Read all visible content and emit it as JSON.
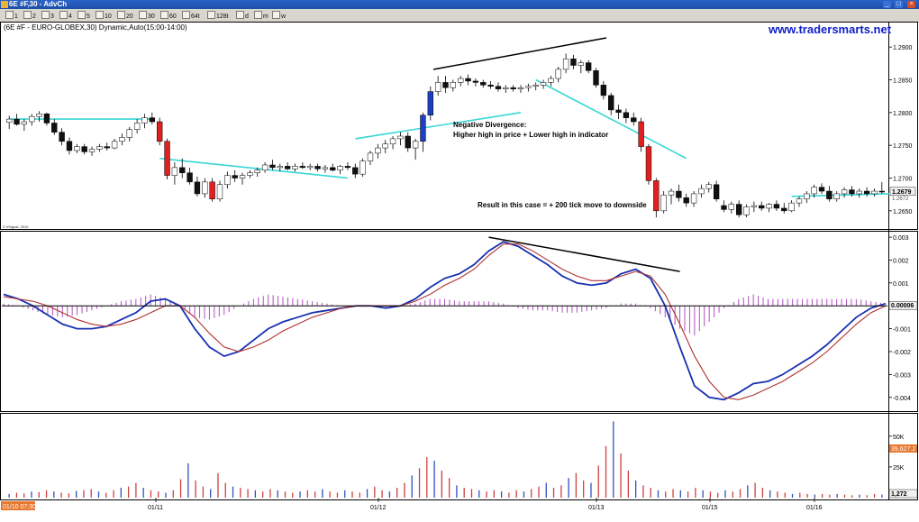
{
  "window": {
    "title": "6E #F,30 - AdvCh",
    "buttons": [
      "_",
      "□",
      "×"
    ]
  },
  "toolbar": {
    "items": [
      "1",
      "2",
      "3",
      "4",
      "5",
      "10",
      "20",
      "30",
      "60",
      "64t",
      "128t",
      "d",
      "m",
      "w"
    ]
  },
  "header": {
    "symbol_text": "(6E #F - EURO-GLOBEX,30) Dynamic,Auto(15:00-14:00)",
    "brand": "www.tradersmarts.net"
  },
  "watermark": "© eSignal, 2010",
  "annotations": {
    "divergence_title": "Negative Divergence:",
    "divergence_desc": "Higher high in price + Lower high in indicator",
    "result": "Result in this case = + 200 tick move to downside"
  },
  "colors": {
    "up": "#ffffff",
    "down": "#111111",
    "up_blue": "#1f3fbf",
    "down_red": "#e02020",
    "ma": "#38d6d6",
    "macd": "#1830b0",
    "signal": "#b03030",
    "histogram": "#b050c0",
    "vol_red": "#d04040",
    "vol_blue": "#3050c0",
    "volume_price_badge": "#e87830",
    "time_badge": "#e87830"
  },
  "x_axis": {
    "labels": [
      "01/11",
      "01/12",
      "01/13",
      "01/15",
      "01/16"
    ],
    "left_badge": "01/10 07:30"
  },
  "chart_data": [
    {
      "type": "candlestick",
      "panel": "price",
      "ylim": [
        1.2625,
        1.2925
      ],
      "y_ticks": [
        "1.2900",
        "1.2850",
        "1.2800",
        "1.2750",
        "1.2700",
        "1.2650"
      ],
      "last_price_labels": [
        "1.2679",
        "1.2672"
      ],
      "ohlc": [
        [
          1.2785,
          1.2795,
          1.2775,
          1.279
        ],
        [
          1.279,
          1.2798,
          1.278,
          1.2782
        ],
        [
          1.2782,
          1.279,
          1.2772,
          1.2786
        ],
        [
          1.2786,
          1.2798,
          1.278,
          1.2794
        ],
        [
          1.2794,
          1.2802,
          1.2786,
          1.2798
        ],
        [
          1.2798,
          1.28,
          1.278,
          1.2784
        ],
        [
          1.2784,
          1.279,
          1.2766,
          1.277
        ],
        [
          1.277,
          1.2776,
          1.275,
          1.2756
        ],
        [
          1.2756,
          1.2762,
          1.2736,
          1.2742
        ],
        [
          1.2742,
          1.2752,
          1.2738,
          1.2748
        ],
        [
          1.2748,
          1.2752,
          1.2736,
          1.274
        ],
        [
          1.274,
          1.2748,
          1.2734,
          1.2744
        ],
        [
          1.2744,
          1.2752,
          1.274,
          1.2748
        ],
        [
          1.2748,
          1.2754,
          1.2742,
          1.2746
        ],
        [
          1.2746,
          1.276,
          1.2744,
          1.2756
        ],
        [
          1.2756,
          1.2768,
          1.275,
          1.2762
        ],
        [
          1.2762,
          1.2778,
          1.2756,
          1.2774
        ],
        [
          1.2774,
          1.279,
          1.2768,
          1.2784
        ],
        [
          1.2784,
          1.2798,
          1.2776,
          1.2792
        ],
        [
          1.2792,
          1.28,
          1.2782,
          1.2786
        ],
        [
          1.2786,
          1.2792,
          1.275,
          1.2756
        ],
        [
          1.2756,
          1.276,
          1.2698,
          1.2704
        ],
        [
          1.2704,
          1.2724,
          1.269,
          1.2716
        ],
        [
          1.2716,
          1.273,
          1.27,
          1.2708
        ],
        [
          1.2708,
          1.2716,
          1.269,
          1.2694
        ],
        [
          1.2694,
          1.2702,
          1.2672,
          1.2676
        ],
        [
          1.2676,
          1.27,
          1.267,
          1.2694
        ],
        [
          1.2694,
          1.27,
          1.2664,
          1.2668
        ],
        [
          1.2668,
          1.2696,
          1.2664,
          1.269
        ],
        [
          1.269,
          1.271,
          1.2684,
          1.2704
        ],
        [
          1.2704,
          1.2712,
          1.2694,
          1.27
        ],
        [
          1.27,
          1.2708,
          1.269,
          1.2704
        ],
        [
          1.2704,
          1.2712,
          1.27,
          1.2708
        ],
        [
          1.2708,
          1.2716,
          1.2702,
          1.2712
        ],
        [
          1.2712,
          1.2724,
          1.2708,
          1.272
        ],
        [
          1.272,
          1.2728,
          1.2712,
          1.2716
        ],
        [
          1.2716,
          1.2722,
          1.271,
          1.2718
        ],
        [
          1.2718,
          1.2724,
          1.2712,
          1.2714
        ],
        [
          1.2714,
          1.2722,
          1.271,
          1.2718
        ],
        [
          1.2718,
          1.2724,
          1.2714,
          1.2716
        ],
        [
          1.2716,
          1.2722,
          1.2712,
          1.2718
        ],
        [
          1.2718,
          1.2722,
          1.271,
          1.2714
        ],
        [
          1.2714,
          1.272,
          1.2708,
          1.2716
        ],
        [
          1.2716,
          1.2722,
          1.271,
          1.2712
        ],
        [
          1.2712,
          1.272,
          1.2706,
          1.2718
        ],
        [
          1.2718,
          1.2724,
          1.2712,
          1.2716
        ],
        [
          1.2716,
          1.2722,
          1.27,
          1.2706
        ],
        [
          1.2706,
          1.273,
          1.2702,
          1.2726
        ],
        [
          1.2726,
          1.2742,
          1.272,
          1.2738
        ],
        [
          1.2738,
          1.2752,
          1.273,
          1.2746
        ],
        [
          1.2746,
          1.2758,
          1.2738,
          1.2752
        ],
        [
          1.2752,
          1.2764,
          1.2744,
          1.276
        ],
        [
          1.276,
          1.277,
          1.275,
          1.2764
        ],
        [
          1.2764,
          1.277,
          1.274,
          1.2746
        ],
        [
          1.2746,
          1.276,
          1.2728,
          1.2756
        ],
        [
          1.2756,
          1.28,
          1.274,
          1.2796
        ],
        [
          1.2796,
          1.284,
          1.2788,
          1.2832
        ],
        [
          1.2832,
          1.2856,
          1.2826,
          1.2846
        ],
        [
          1.2846,
          1.2856,
          1.283,
          1.2838
        ],
        [
          1.2838,
          1.285,
          1.2832,
          1.2846
        ],
        [
          1.2846,
          1.2856,
          1.284,
          1.2852
        ],
        [
          1.2852,
          1.2858,
          1.2842,
          1.2848
        ],
        [
          1.2848,
          1.2852,
          1.284,
          1.2846
        ],
        [
          1.2846,
          1.285,
          1.2838,
          1.2842
        ],
        [
          1.2842,
          1.2848,
          1.2836,
          1.284
        ],
        [
          1.284,
          1.2846,
          1.2832,
          1.2836
        ],
        [
          1.2836,
          1.2842,
          1.283,
          1.2838
        ],
        [
          1.2838,
          1.2842,
          1.2832,
          1.2836
        ],
        [
          1.2836,
          1.2842,
          1.283,
          1.2838
        ],
        [
          1.2838,
          1.2844,
          1.2832,
          1.284
        ],
        [
          1.284,
          1.2846,
          1.2834,
          1.2842
        ],
        [
          1.2842,
          1.285,
          1.2836,
          1.2846
        ],
        [
          1.2846,
          1.2856,
          1.284,
          1.2852
        ],
        [
          1.2852,
          1.287,
          1.2846,
          1.2866
        ],
        [
          1.2866,
          1.289,
          1.286,
          1.2882
        ],
        [
          1.2882,
          1.2888,
          1.2866,
          1.2872
        ],
        [
          1.2872,
          1.288,
          1.286,
          1.2876
        ],
        [
          1.2876,
          1.288,
          1.286,
          1.2864
        ],
        [
          1.2864,
          1.2868,
          1.2838,
          1.2842
        ],
        [
          1.2842,
          1.2848,
          1.282,
          1.2826
        ],
        [
          1.2826,
          1.283,
          1.2796,
          1.2804
        ],
        [
          1.2804,
          1.2812,
          1.279,
          1.28
        ],
        [
          1.28,
          1.2806,
          1.2784,
          1.2792
        ],
        [
          1.2792,
          1.28,
          1.278,
          1.2786
        ],
        [
          1.2786,
          1.2792,
          1.274,
          1.2748
        ],
        [
          1.2748,
          1.2752,
          1.269,
          1.2696
        ],
        [
          1.2696,
          1.27,
          1.264,
          1.265
        ],
        [
          1.265,
          1.268,
          1.2646,
          1.2674
        ],
        [
          1.2674,
          1.2684,
          1.266,
          1.268
        ],
        [
          1.268,
          1.269,
          1.2664,
          1.267
        ],
        [
          1.267,
          1.2676,
          1.2656,
          1.2662
        ],
        [
          1.2662,
          1.268,
          1.2656,
          1.2676
        ],
        [
          1.2676,
          1.269,
          1.267,
          1.2684
        ],
        [
          1.2684,
          1.2694,
          1.2678,
          1.269
        ],
        [
          1.269,
          1.2696,
          1.2664,
          1.2668
        ],
        [
          1.2658,
          1.2666,
          1.2648,
          1.2652
        ],
        [
          1.2652,
          1.2664,
          1.2646,
          1.266
        ],
        [
          1.266,
          1.2666,
          1.264,
          1.2644
        ],
        [
          1.2644,
          1.266,
          1.264,
          1.2656
        ],
        [
          1.2656,
          1.2664,
          1.2648,
          1.2658
        ],
        [
          1.2658,
          1.2664,
          1.265,
          1.2654
        ],
        [
          1.2654,
          1.2662,
          1.2648,
          1.266
        ],
        [
          1.266,
          1.2666,
          1.265,
          1.2654
        ],
        [
          1.2654,
          1.2662,
          1.2646,
          1.265
        ],
        [
          1.265,
          1.2666,
          1.2648,
          1.2662
        ],
        [
          1.2662,
          1.2672,
          1.2656,
          1.2668
        ],
        [
          1.2668,
          1.268,
          1.2662,
          1.2676
        ],
        [
          1.2676,
          1.269,
          1.267,
          1.2686
        ],
        [
          1.2686,
          1.2692,
          1.2676,
          1.268
        ],
        [
          1.268,
          1.2688,
          1.2664,
          1.2668
        ],
        [
          1.2668,
          1.268,
          1.2664,
          1.2676
        ],
        [
          1.2676,
          1.2686,
          1.267,
          1.2682
        ],
        [
          1.2682,
          1.2688,
          1.2672,
          1.2676
        ],
        [
          1.2676,
          1.2684,
          1.267,
          1.268
        ],
        [
          1.268,
          1.2686,
          1.2672,
          1.2676
        ],
        [
          1.2676,
          1.2684,
          1.2672,
          1.268
        ],
        [
          1.268,
          1.2694,
          1.2676,
          1.2679
        ]
      ],
      "moving_average": [
        {
          "segment": [
            0,
            19
          ],
          "values": [
            1.279,
            1.279
          ]
        },
        {
          "segment": [
            20,
            45
          ],
          "values": [
            1.273,
            1.27
          ]
        },
        {
          "segment": [
            46,
            68
          ],
          "values": [
            1.276,
            1.28
          ]
        },
        {
          "segment": [
            70,
            90
          ],
          "values": [
            1.285,
            1.273
          ]
        },
        {
          "segment": [
            104,
            117
          ],
          "values": [
            1.2672,
            1.2676
          ]
        }
      ]
    },
    {
      "type": "line",
      "panel": "indicator",
      "ylim": [
        -0.0046,
        0.0032
      ],
      "y_ticks": [
        "0.003",
        "0.002",
        "0.001",
        "-0.001",
        "-0.002",
        "-0.003",
        "-0.004"
      ],
      "zero_label": "0.00006",
      "series": [
        {
          "name": "",
          "values": [
            0.0005,
            0.0003,
            0.0,
            -0.0004,
            -0.0008,
            -0.001,
            -0.001,
            -0.0009,
            -0.0006,
            -0.0003,
            0.0002,
            0.0003,
            0.0,
            -0.001,
            -0.0018,
            -0.0022,
            -0.002,
            -0.0015,
            -0.001,
            -0.0007,
            -0.0005,
            -0.0003,
            -0.0002,
            -0.0001,
            0.0,
            0.0,
            -0.0001,
            0.0,
            0.0003,
            0.0008,
            0.0012,
            0.0014,
            0.0018,
            0.0024,
            0.0028,
            0.0026,
            0.0022,
            0.0018,
            0.0013,
            0.001,
            0.0009,
            0.001,
            0.0014,
            0.0016,
            0.0012,
            0.0,
            -0.0018,
            -0.0035,
            -0.004,
            -0.0041,
            -0.0038,
            -0.0034,
            -0.0033,
            -0.003,
            -0.0026,
            -0.0022,
            -0.0017,
            -0.0011,
            -0.0005,
            -0.0001,
            0.0001
          ]
        },
        {
          "name": "",
          "values": [
            0.0004,
            0.0003,
            0.0002,
            0.0,
            -0.0003,
            -0.0006,
            -0.0008,
            -0.0009,
            -0.0008,
            -0.0006,
            -0.0003,
            0.0,
            0.0,
            -0.0005,
            -0.0012,
            -0.0018,
            -0.002,
            -0.0018,
            -0.0015,
            -0.0011,
            -0.0008,
            -0.0005,
            -0.0003,
            -0.0001,
            0.0,
            0.0,
            0.0,
            0.0,
            0.0002,
            0.0005,
            0.0009,
            0.0012,
            0.0016,
            0.0022,
            0.0027,
            0.0027,
            0.0024,
            0.002,
            0.0016,
            0.0013,
            0.0011,
            0.0011,
            0.0013,
            0.0015,
            0.0013,
            0.0005,
            -0.0008,
            -0.0022,
            -0.0033,
            -0.004,
            -0.0041,
            -0.0039,
            -0.0036,
            -0.0033,
            -0.0029,
            -0.0025,
            -0.002,
            -0.0014,
            -0.0008,
            -0.0003,
            0.0
          ]
        }
      ],
      "histogram": [
        0.0001,
        0.0,
        -0.0002,
        -0.0004,
        -0.0005,
        -0.0004,
        -0.0002,
        0.0,
        0.0002,
        0.0003,
        0.0005,
        0.0003,
        0.0,
        -0.0005,
        -0.0006,
        -0.0004,
        0.0,
        0.0003,
        0.0005,
        0.0004,
        0.0003,
        0.0002,
        0.0001,
        0.0,
        0.0,
        0.0,
        -0.0001,
        0.0,
        0.0001,
        0.0003,
        0.0003,
        0.0002,
        0.0002,
        0.0002,
        0.0001,
        -0.0001,
        -0.0002,
        -0.0002,
        -0.0003,
        -0.0003,
        -0.0002,
        -0.0001,
        0.0001,
        0.0001,
        -0.0001,
        -0.0005,
        -0.001,
        -0.0013,
        -0.0007,
        -0.0001,
        0.0003,
        0.0005,
        0.0003,
        0.0003,
        0.0003,
        0.0003,
        0.0003,
        0.0003,
        0.0003,
        0.0002,
        0.0001
      ],
      "divergence_line": [
        [
          33,
          0.003
        ],
        [
          46,
          0.0015
        ]
      ]
    },
    {
      "type": "bar",
      "panel": "volume",
      "ylim": [
        0,
        66000
      ],
      "y_ticks": [
        "50K",
        "25K"
      ],
      "last_value_label": "39,627.2",
      "last_value_label_2": "1,272",
      "values": [
        3000,
        4000,
        3500,
        5000,
        4500,
        6000,
        5000,
        4000,
        3500,
        5500,
        6000,
        7000,
        5000,
        4000,
        6000,
        8000,
        9000,
        12000,
        8000,
        6000,
        5000,
        4000,
        6000,
        15000,
        28000,
        14000,
        9000,
        7000,
        20000,
        12000,
        9000,
        8000,
        7000,
        6000,
        5000,
        7000,
        6000,
        5000,
        4000,
        5000,
        6000,
        5000,
        7000,
        5000,
        4000,
        6000,
        5000,
        4000,
        7000,
        9000,
        6000,
        5000,
        8000,
        12000,
        18000,
        24000,
        33000,
        30000,
        22000,
        16000,
        10000,
        8000,
        7000,
        6000,
        5000,
        6000,
        5000,
        4000,
        6000,
        5000,
        7000,
        9000,
        12000,
        8000,
        10000,
        16000,
        20000,
        14000,
        12000,
        26000,
        42000,
        62000,
        36000,
        22000,
        14000,
        10000,
        8000,
        6000,
        5000,
        7000,
        6000,
        5000,
        8000,
        6000,
        5000,
        4000,
        6000,
        5000,
        7000,
        10000,
        12000,
        8000,
        6000,
        5000,
        4000,
        3000,
        4000,
        3000,
        2500,
        3000,
        2500,
        3000,
        2500,
        2000,
        2500,
        2000,
        3000,
        2500
      ]
    }
  ]
}
